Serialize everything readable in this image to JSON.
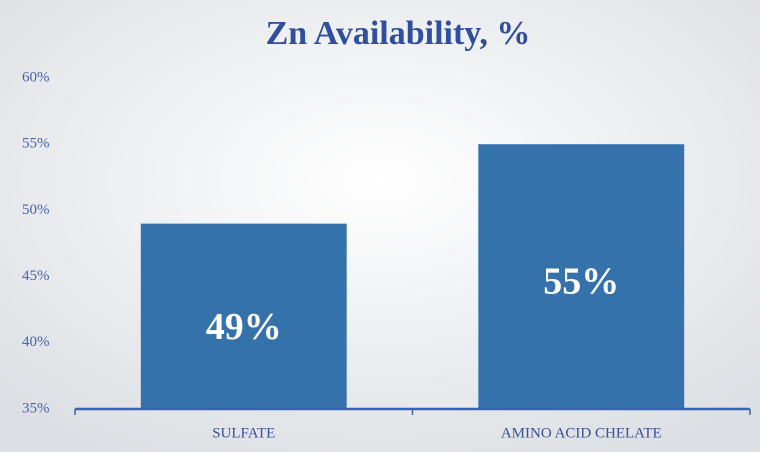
{
  "chart_data": {
    "type": "bar",
    "title": "Zn Availability, %",
    "categories": [
      "SULFATE",
      "AMINO ACID CHELATE"
    ],
    "values": [
      49,
      55
    ],
    "value_labels": [
      "49%",
      "55%"
    ],
    "color": "#3572ab",
    "ylim": [
      35,
      60
    ],
    "yticks": [
      {
        "value": 35,
        "label": "35%"
      },
      {
        "value": 40,
        "label": "40%"
      },
      {
        "value": 45,
        "label": "45%"
      },
      {
        "value": 50,
        "label": "50%"
      },
      {
        "value": 55,
        "label": "55%"
      },
      {
        "value": 60,
        "label": "60%"
      }
    ],
    "grid": false
  }
}
